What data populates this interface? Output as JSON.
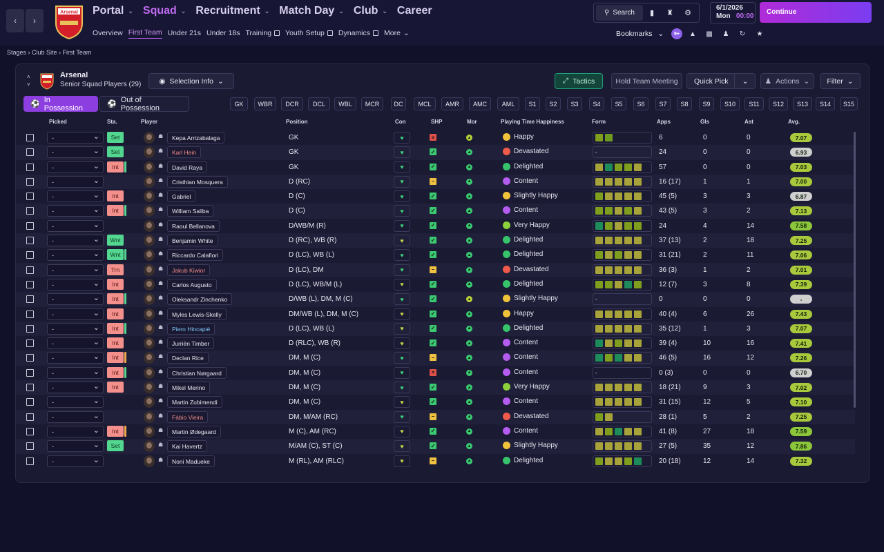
{
  "header": {
    "nav": [
      {
        "label": "Portal",
        "active": false
      },
      {
        "label": "Squad",
        "active": true
      },
      {
        "label": "Recruitment",
        "active": false
      },
      {
        "label": "Match Day",
        "active": false
      },
      {
        "label": "Club",
        "active": false
      },
      {
        "label": "Career",
        "active": false
      }
    ],
    "subnav": [
      {
        "label": "Overview",
        "active": false,
        "external": false
      },
      {
        "label": "First Team",
        "active": true,
        "external": false
      },
      {
        "label": "Under 21s",
        "active": false,
        "external": false
      },
      {
        "label": "Under 18s",
        "active": false,
        "external": false
      },
      {
        "label": "Training",
        "active": false,
        "external": true
      },
      {
        "label": "Youth Setup",
        "active": false,
        "external": true
      },
      {
        "label": "Dynamics",
        "active": false,
        "external": true
      },
      {
        "label": "More",
        "active": false,
        "external": false
      }
    ],
    "search_label": "Search",
    "date": "6/1/2026",
    "day": "Mon",
    "time": "00:00",
    "continue_label": "Continue",
    "bookmarks_label": "Bookmarks",
    "badge": "9+"
  },
  "breadcrumb": [
    "Stages",
    "Club Site",
    "First Team"
  ],
  "panel": {
    "club": "Arsenal",
    "subtitle": "Senior Squad Players (29)",
    "selection_info": "Selection Info",
    "tactics": "Tactics",
    "hold_meeting": "Hold Team Meeting",
    "quick_pick": "Quick Pick",
    "actions": "Actions",
    "filter": "Filter",
    "in_possession": "In Possession",
    "out_of_possession": "Out of Possession",
    "position_pills": [
      "GK",
      "WBR",
      "DCR",
      "DCL",
      "WBL",
      "MCR",
      "DC",
      "MCL",
      "AMR",
      "AMC",
      "AML",
      "S1",
      "S2",
      "S3",
      "S4",
      "S5",
      "S6",
      "S7",
      "S8",
      "S9",
      "S10",
      "S11",
      "S12",
      "S13",
      "S14",
      "S15"
    ]
  },
  "columns": [
    "Picked",
    "Sta.",
    "Player",
    "Position",
    "Con",
    "SHP",
    "Mor",
    "Playing Time Happiness",
    "Form",
    "Apps",
    "Gls",
    "Ast",
    "Avg."
  ],
  "colors": {
    "accent": "#c06cf2",
    "green": "#53d68f",
    "red": "#f3908b"
  },
  "players": [
    {
      "picked": "-",
      "sta": "Set",
      "bar": "",
      "name": "Kepa Arrizabalaga",
      "nc": "",
      "pos": "GK",
      "con": "g",
      "shp": "x",
      "mor": "y",
      "hap": "Happy",
      "hc": "#f0c23a",
      "form": [
        "o",
        "g"
      ],
      "apps": "6",
      "gls": "0",
      "ast": "0",
      "avg": "7.07",
      "ac": "#a9c93c"
    },
    {
      "picked": "-",
      "sta": "Set",
      "bar": "",
      "name": "Karl Hein",
      "nc": "red",
      "pos": "GK",
      "con": "g",
      "shp": "c",
      "mor": "g",
      "hap": "Devastated",
      "hc": "#f05a4a",
      "form": [],
      "apps": "24",
      "gls": "0",
      "ast": "0",
      "avg": "6.93",
      "ac": "#cfcfcf"
    },
    {
      "picked": "-",
      "sta": "Int",
      "bar": "#53d68f",
      "name": "David Raya",
      "nc": "",
      "pos": "GK",
      "con": "g",
      "shp": "c",
      "mor": "g",
      "hap": "Delighted",
      "hc": "#36c36a",
      "form": [
        "y",
        "t",
        "o",
        "o",
        "y"
      ],
      "apps": "57",
      "gls": "0",
      "ast": "0",
      "avg": "7.03",
      "ac": "#a9c93c"
    },
    {
      "picked": "-",
      "sta": "",
      "bar": "",
      "name": "Cristhian Mosquera",
      "nc": "",
      "pos": "D (RC)",
      "con": "g",
      "shp": "m",
      "mor": "g",
      "hap": "Content",
      "hc": "#b45cf0",
      "form": [
        "y",
        "y",
        "y",
        "y",
        "y"
      ],
      "apps": "16 (17)",
      "gls": "1",
      "ast": "1",
      "avg": "7.00",
      "ac": "#a9c93c"
    },
    {
      "picked": "-",
      "sta": "Int",
      "bar": "",
      "name": "Gabriel",
      "nc": "",
      "pos": "D (C)",
      "con": "g",
      "shp": "c",
      "mor": "g",
      "hap": "Slightly Happy",
      "hc": "#f0c23a",
      "form": [
        "o",
        "y",
        "y",
        "y",
        "y"
      ],
      "apps": "45 (5)",
      "gls": "3",
      "ast": "3",
      "avg": "6.87",
      "ac": "#cfcfcf"
    },
    {
      "picked": "-",
      "sta": "Int",
      "bar": "#53d68f",
      "name": "William Saliba",
      "nc": "",
      "pos": "D (C)",
      "con": "g",
      "shp": "c",
      "mor": "g",
      "hap": "Content",
      "hc": "#b45cf0",
      "form": [
        "o",
        "o",
        "y",
        "o",
        "y"
      ],
      "apps": "43 (5)",
      "gls": "3",
      "ast": "2",
      "avg": "7.13",
      "ac": "#a9c93c"
    },
    {
      "picked": "-",
      "sta": "",
      "bar": "",
      "name": "Raoul Bellanova",
      "nc": "",
      "pos": "D/WB/M (R)",
      "con": "g",
      "shp": "c",
      "mor": "g",
      "hap": "Very Happy",
      "hc": "#8cd03a",
      "form": [
        "t",
        "o",
        "y",
        "o",
        "o"
      ],
      "apps": "24",
      "gls": "4",
      "ast": "14",
      "avg": "7.58",
      "ac": "#8cc63a"
    },
    {
      "picked": "-",
      "sta": "Wnt",
      "bar": "",
      "name": "Benjamin White",
      "nc": "",
      "pos": "D (RC), WB (R)",
      "con": "y",
      "shp": "c",
      "mor": "g",
      "hap": "Delighted",
      "hc": "#36c36a",
      "form": [
        "y",
        "y",
        "y",
        "y",
        "y"
      ],
      "apps": "37 (13)",
      "gls": "2",
      "ast": "18",
      "avg": "7.25",
      "ac": "#a9c93c"
    },
    {
      "picked": "-",
      "sta": "Wnt",
      "bar": "#53d68f",
      "name": "Riccardo Calafiori",
      "nc": "",
      "pos": "D (LC), WB (L)",
      "con": "g",
      "shp": "c",
      "mor": "g",
      "hap": "Delighted",
      "hc": "#36c36a",
      "form": [
        "o",
        "y",
        "o",
        "y",
        "y"
      ],
      "apps": "31 (21)",
      "gls": "2",
      "ast": "11",
      "avg": "7.06",
      "ac": "#a9c93c"
    },
    {
      "picked": "-",
      "sta": "Trn",
      "bar": "",
      "name": "Jakub Kiwior",
      "nc": "red",
      "pos": "D (LC), DM",
      "con": "g",
      "shp": "m",
      "mor": "g",
      "hap": "Devastated",
      "hc": "#f05a4a",
      "form": [
        "y",
        "y",
        "y",
        "y",
        "y"
      ],
      "apps": "36 (3)",
      "gls": "1",
      "ast": "2",
      "avg": "7.01",
      "ac": "#a9c93c"
    },
    {
      "picked": "-",
      "sta": "Int",
      "bar": "",
      "name": "Carlos Augusto",
      "nc": "",
      "pos": "D (LC), WB/M (L)",
      "con": "y",
      "shp": "c",
      "mor": "g",
      "hap": "Delighted",
      "hc": "#36c36a",
      "form": [
        "o",
        "o",
        "y",
        "t",
        "o"
      ],
      "apps": "12 (7)",
      "gls": "3",
      "ast": "8",
      "avg": "7.39",
      "ac": "#a9c93c"
    },
    {
      "picked": "-",
      "sta": "Int",
      "bar": "#53d68f",
      "name": "Oleksandr Zinchenko",
      "nc": "",
      "pos": "D/WB (L), DM, M (C)",
      "con": "g",
      "shp": "c",
      "mor": "y",
      "hap": "Slightly Happy",
      "hc": "#f0c23a",
      "form": [],
      "apps": "0",
      "gls": "0",
      "ast": "0",
      "avg": "-",
      "ac": "#cfcfcf"
    },
    {
      "picked": "-",
      "sta": "Int",
      "bar": "",
      "name": "Myles Lewis-Skelly",
      "nc": "",
      "pos": "DM/WB (L), DM, M (C)",
      "con": "y",
      "shp": "c",
      "mor": "g",
      "hap": "Happy",
      "hc": "#f0c23a",
      "form": [
        "y",
        "y",
        "y",
        "y",
        "y"
      ],
      "apps": "40 (4)",
      "gls": "6",
      "ast": "26",
      "avg": "7.43",
      "ac": "#a9c93c"
    },
    {
      "picked": "-",
      "sta": "Int",
      "bar": "#53d68f",
      "name": "Piero Hincapié",
      "nc": "blue",
      "pos": "D (LC), WB (L)",
      "con": "y",
      "shp": "c",
      "mor": "g",
      "hap": "Delighted",
      "hc": "#36c36a",
      "form": [
        "y",
        "y",
        "y",
        "y",
        "y"
      ],
      "apps": "35 (12)",
      "gls": "1",
      "ast": "3",
      "avg": "7.07",
      "ac": "#a9c93c"
    },
    {
      "picked": "-",
      "sta": "Int",
      "bar": "",
      "name": "Jurriën Timber",
      "nc": "",
      "pos": "D (RLC), WB (R)",
      "con": "y",
      "shp": "c",
      "mor": "g",
      "hap": "Content",
      "hc": "#b45cf0",
      "form": [
        "t",
        "y",
        "o",
        "y",
        "y"
      ],
      "apps": "39 (4)",
      "gls": "10",
      "ast": "16",
      "avg": "7.41",
      "ac": "#a9c93c"
    },
    {
      "picked": "-",
      "sta": "Int",
      "bar": "#f0a84a",
      "name": "Declan Rice",
      "nc": "",
      "pos": "DM, M (C)",
      "con": "g",
      "shp": "m",
      "mor": "g",
      "hap": "Content",
      "hc": "#b45cf0",
      "form": [
        "t",
        "o",
        "t",
        "y",
        "y"
      ],
      "apps": "46 (5)",
      "gls": "16",
      "ast": "12",
      "avg": "7.26",
      "ac": "#a9c93c"
    },
    {
      "picked": "-",
      "sta": "Int",
      "bar": "#53d68f",
      "name": "Christian Nørgaard",
      "nc": "",
      "pos": "DM, M (C)",
      "con": "g",
      "shp": "x",
      "mor": "g",
      "hap": "Content",
      "hc": "#b45cf0",
      "form": [],
      "apps": "0 (3)",
      "gls": "0",
      "ast": "0",
      "avg": "6.70",
      "ac": "#cfcfcf"
    },
    {
      "picked": "-",
      "sta": "Int",
      "bar": "",
      "name": "Mikel Merino",
      "nc": "",
      "pos": "DM, M (C)",
      "con": "g",
      "shp": "c",
      "mor": "g",
      "hap": "Very Happy",
      "hc": "#8cd03a",
      "form": [
        "y",
        "y",
        "y",
        "y",
        "y"
      ],
      "apps": "18 (21)",
      "gls": "9",
      "ast": "3",
      "avg": "7.02",
      "ac": "#a9c93c"
    },
    {
      "picked": "-",
      "sta": "",
      "bar": "",
      "name": "Martin Zubimendi",
      "nc": "",
      "pos": "DM, M (C)",
      "con": "y",
      "shp": "c",
      "mor": "g",
      "hap": "Content",
      "hc": "#b45cf0",
      "form": [
        "y",
        "y",
        "y",
        "y",
        "y"
      ],
      "apps": "31 (15)",
      "gls": "12",
      "ast": "5",
      "avg": "7.10",
      "ac": "#a9c93c"
    },
    {
      "picked": "-",
      "sta": "",
      "bar": "",
      "name": "Fábio Vieira",
      "nc": "red",
      "pos": "DM, M/AM (RC)",
      "con": "g",
      "shp": "m",
      "mor": "g",
      "hap": "Devastated",
      "hc": "#f05a4a",
      "form": [
        "o",
        "y"
      ],
      "apps": "28 (1)",
      "gls": "5",
      "ast": "2",
      "avg": "7.25",
      "ac": "#a9c93c"
    },
    {
      "picked": "-",
      "sta": "Int",
      "bar": "#f0a84a",
      "name": "Martin Ødegaard",
      "nc": "",
      "pos": "M (C), AM (RC)",
      "con": "y",
      "shp": "c",
      "mor": "g",
      "hap": "Content",
      "hc": "#b45cf0",
      "form": [
        "y",
        "o",
        "t",
        "y",
        "y"
      ],
      "apps": "41 (8)",
      "gls": "27",
      "ast": "18",
      "avg": "7.59",
      "ac": "#8cc63a"
    },
    {
      "picked": "-",
      "sta": "Set",
      "bar": "",
      "name": "Kai Havertz",
      "nc": "",
      "pos": "M/AM (C), ST (C)",
      "con": "y",
      "shp": "c",
      "mor": "g",
      "hap": "Slightly Happy",
      "hc": "#f0c23a",
      "form": [
        "y",
        "y",
        "y",
        "y",
        "y"
      ],
      "apps": "27 (5)",
      "gls": "35",
      "ast": "12",
      "avg": "7.86",
      "ac": "#8cc63a"
    },
    {
      "picked": "-",
      "sta": "",
      "bar": "",
      "name": "Noni Madueke",
      "nc": "",
      "pos": "M (RL), AM (RLC)",
      "con": "y",
      "shp": "m",
      "mor": "g",
      "hap": "Delighted",
      "hc": "#36c36a",
      "form": [
        "o",
        "y",
        "y",
        "o",
        "t"
      ],
      "apps": "20 (18)",
      "gls": "12",
      "ast": "14",
      "avg": "7.32",
      "ac": "#a9c93c"
    }
  ]
}
